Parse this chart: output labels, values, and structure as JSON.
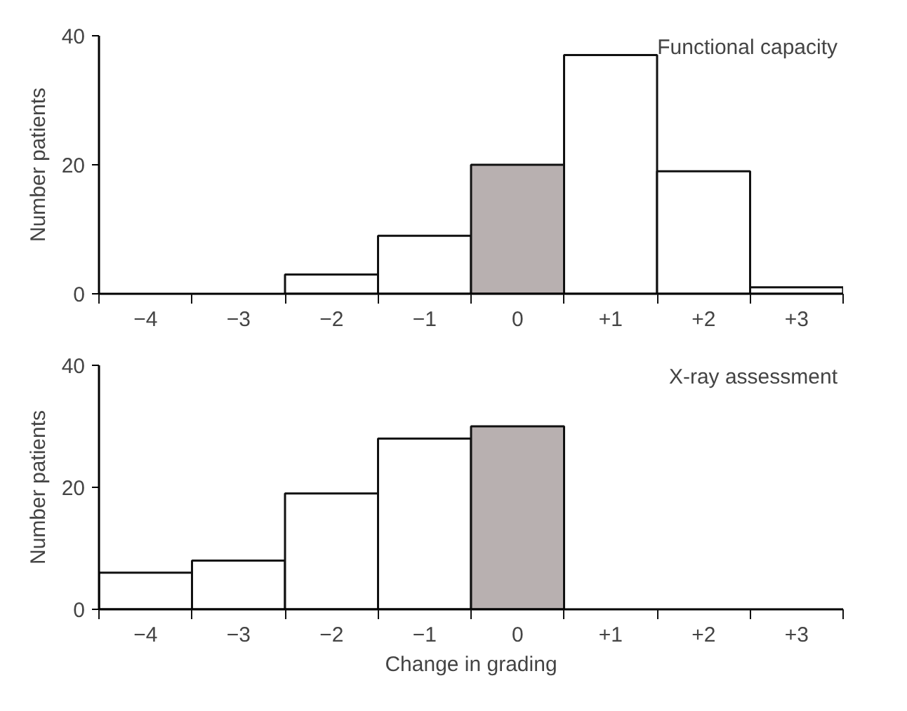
{
  "chart_data": [
    {
      "type": "bar",
      "title": "Functional capacity",
      "ylabel": "Number patients",
      "categories": [
        "−4",
        "−3",
        "−2",
        "−1",
        "0",
        "+1",
        "+2",
        "+3"
      ],
      "values": [
        0,
        0,
        3,
        9,
        20,
        37,
        19,
        1
      ],
      "colors": [
        "#ffffff",
        "#ffffff",
        "#ffffff",
        "#ffffff",
        "#b8b0b0",
        "#ffffff",
        "#ffffff",
        "#ffffff"
      ],
      "ylim": [
        0,
        40
      ],
      "yticks": [
        0,
        20,
        40
      ],
      "grid": false
    },
    {
      "type": "bar",
      "title": "X-ray assessment",
      "ylabel": "Number patients",
      "xlabel": "Change in grading",
      "categories": [
        "−4",
        "−3",
        "−2",
        "−1",
        "0",
        "+1",
        "+2",
        "+3"
      ],
      "values": [
        6,
        8,
        19,
        28,
        30,
        0,
        0,
        0
      ],
      "colors": [
        "#ffffff",
        "#ffffff",
        "#ffffff",
        "#ffffff",
        "#b8b0b0",
        "#ffffff",
        "#ffffff",
        "#ffffff"
      ],
      "ylim": [
        0,
        40
      ],
      "yticks": [
        0,
        20,
        40
      ],
      "grid": false
    }
  ]
}
